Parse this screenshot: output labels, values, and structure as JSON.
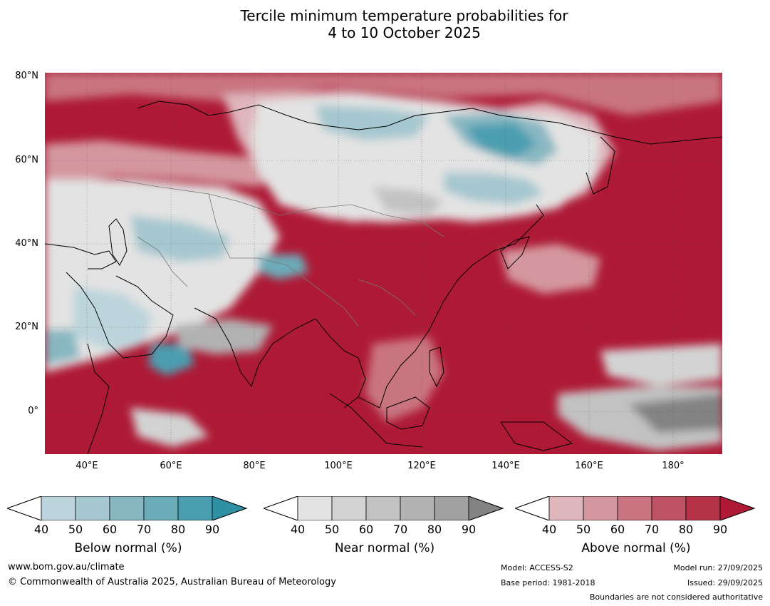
{
  "title_line1": "Tercile minimum temperature probabilities for",
  "title_line2": "4 to 10 October 2025",
  "map": {
    "lat_labels": [
      "80°N",
      "60°N",
      "40°N",
      "20°N",
      "0°"
    ],
    "lon_labels": [
      "40°E",
      "60°E",
      "80°E",
      "100°E",
      "120°E",
      "140°E",
      "160°E",
      "180°"
    ],
    "extent": {
      "lon_min": 30,
      "lon_max": 192,
      "lat_min": -10,
      "lat_max": 81
    }
  },
  "colorbars": [
    {
      "title": "Below normal (%)",
      "ticks": [
        "40",
        "50",
        "60",
        "70",
        "80",
        "90"
      ],
      "colors": [
        "#ffffff",
        "#bcd4dc",
        "#a5c7cf",
        "#88b7c2",
        "#6cabb8",
        "#4b9eb0",
        "#2f8fa3"
      ]
    },
    {
      "title": "Near normal (%)",
      "ticks": [
        "40",
        "50",
        "60",
        "70",
        "80",
        "90"
      ],
      "colors": [
        "#ffffff",
        "#e3e3e3",
        "#d3d3d3",
        "#c2c2c2",
        "#b2b2b2",
        "#a1a1a1",
        "#838383"
      ]
    },
    {
      "title": "Above normal (%)",
      "ticks": [
        "40",
        "50",
        "60",
        "70",
        "80",
        "90"
      ],
      "colors": [
        "#ffffff",
        "#deb6bc",
        "#d4979f",
        "#c97480",
        "#be5264",
        "#b53347",
        "#ae1a36"
      ]
    }
  ],
  "footer": {
    "website": "www.bom.gov.au/climate",
    "copyright": "© Commonwealth of Australia 2025, Australian Bureau of Meteorology",
    "model": "Model: ACCESS-S2",
    "base_period": "Base period: 1981-2018",
    "model_run": "Model run: 27/09/2025",
    "issued": "Issued: 29/09/2025",
    "boundaries": "Boundaries are not considered authoritative"
  }
}
